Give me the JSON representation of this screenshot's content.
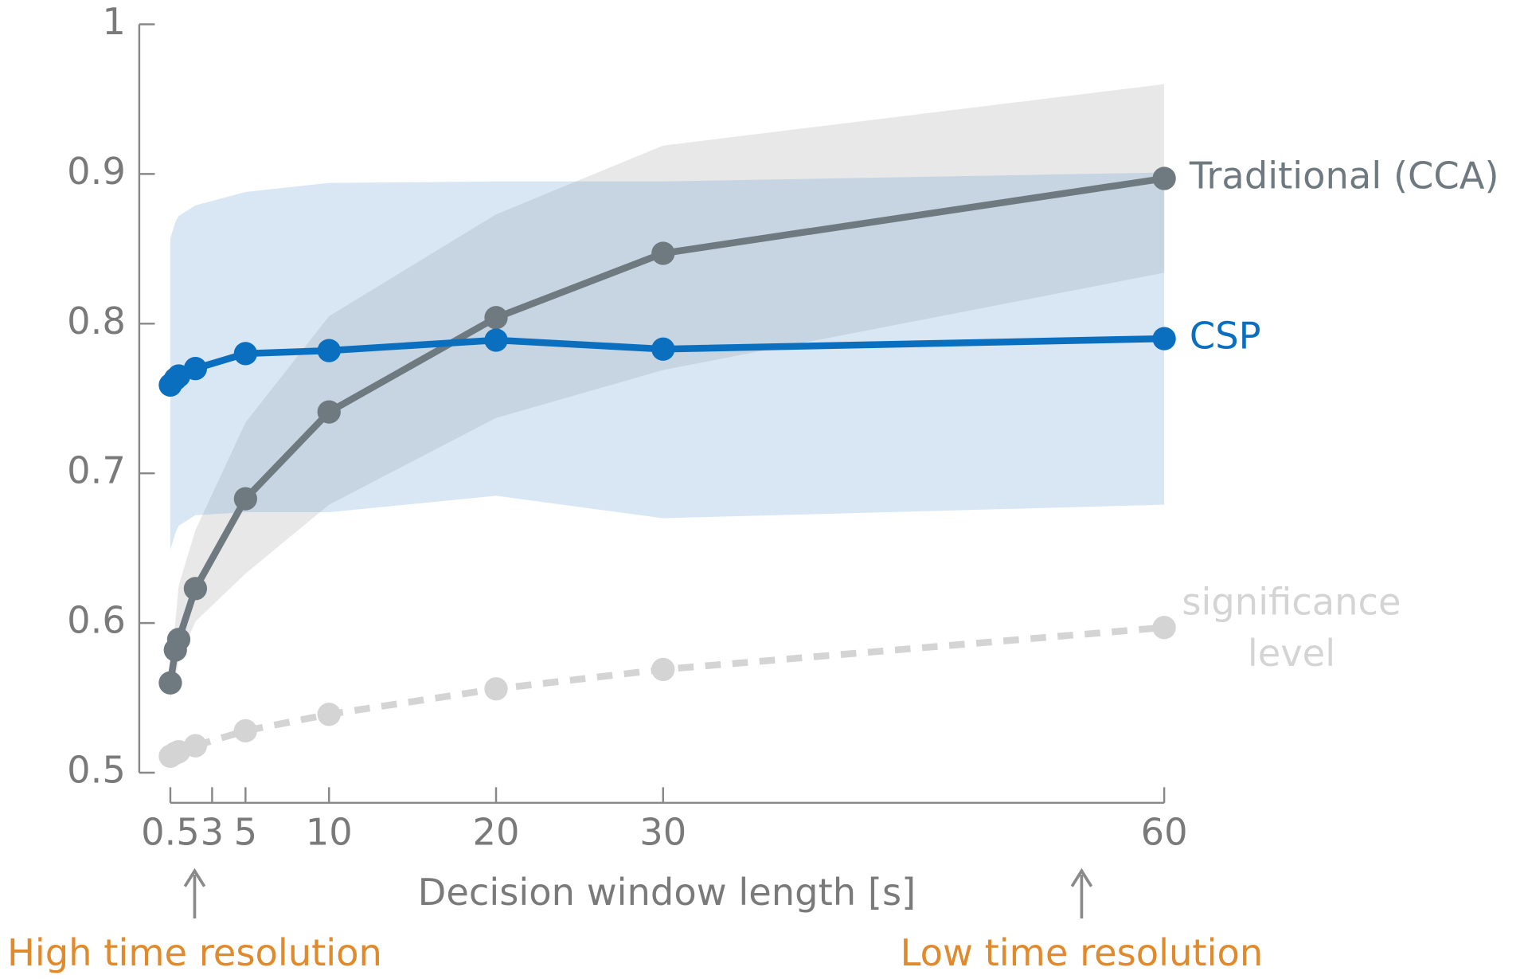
{
  "chart_data": {
    "type": "line",
    "xlabel": "Decision window length [s]",
    "x": [
      0.5,
      0.8,
      1,
      2,
      5,
      10,
      20,
      30,
      60
    ],
    "xlim": [
      0.5,
      60
    ],
    "xticks": [
      0.5,
      3,
      5,
      10,
      20,
      30,
      60
    ],
    "ylim": [
      0.5,
      1
    ],
    "yticks": [
      0.5,
      0.6,
      0.7,
      0.8,
      0.9,
      1
    ],
    "series": [
      {
        "name": "Traditional (CCA)",
        "color": "#6f7a80",
        "band_color": "rgba(120,120,120,0.17)",
        "values": [
          0.56,
          0.582,
          0.589,
          0.623,
          0.683,
          0.741,
          0.804,
          0.847,
          0.897
        ],
        "upper": [
          0.568,
          0.601,
          0.625,
          0.662,
          0.734,
          0.805,
          0.873,
          0.919,
          0.96
        ],
        "lower": [
          0.549,
          0.562,
          0.575,
          0.601,
          0.633,
          0.679,
          0.737,
          0.769,
          0.834
        ]
      },
      {
        "name": "CSP",
        "color": "#0b6fc0",
        "band_color": "rgba(95,155,210,0.24)",
        "values": [
          0.759,
          0.763,
          0.765,
          0.77,
          0.78,
          0.782,
          0.789,
          0.783,
          0.79
        ],
        "upper": [
          0.857,
          0.868,
          0.872,
          0.879,
          0.888,
          0.894,
          0.895,
          0.895,
          0.901
        ],
        "lower": [
          0.649,
          0.66,
          0.665,
          0.672,
          0.674,
          0.674,
          0.685,
          0.67,
          0.679
        ]
      },
      {
        "name": "significance level",
        "color": "#d4d4d4",
        "dash": true,
        "values": [
          0.511,
          0.513,
          0.514,
          0.518,
          0.528,
          0.539,
          0.556,
          0.569,
          0.597
        ]
      }
    ],
    "annotations": [
      "High time resolution",
      "Low time resolution"
    ],
    "annotation_color": "#e08a2c"
  }
}
